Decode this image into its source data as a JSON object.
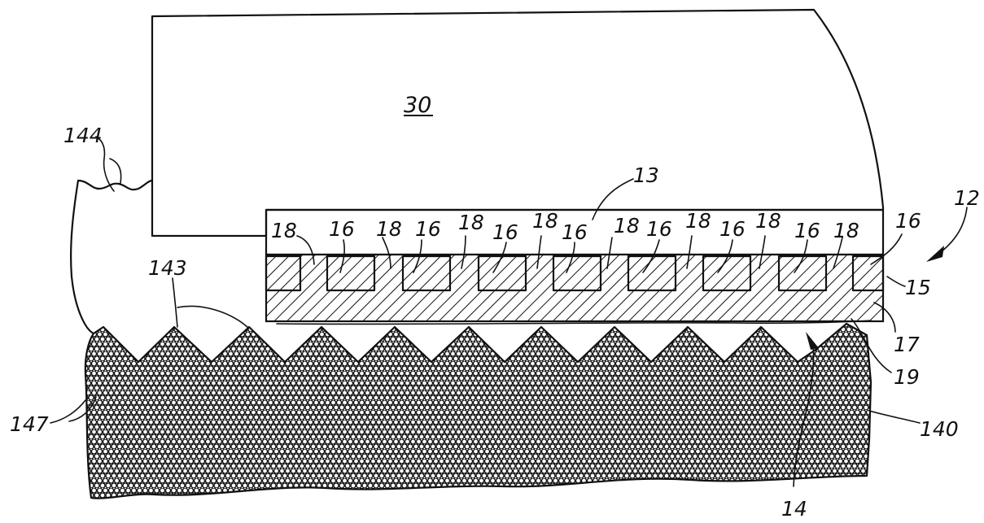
{
  "figure": {
    "labels": {
      "housing": "30",
      "upper_layer": "13",
      "assembly": "12",
      "rib": "18",
      "channel": "16",
      "layer_15": "15",
      "layer_17": "17",
      "layer_19": "19",
      "gap_14": "14",
      "surface_143": "143",
      "region_144": "144",
      "region_147": "147",
      "substrate_140": "140"
    }
  }
}
